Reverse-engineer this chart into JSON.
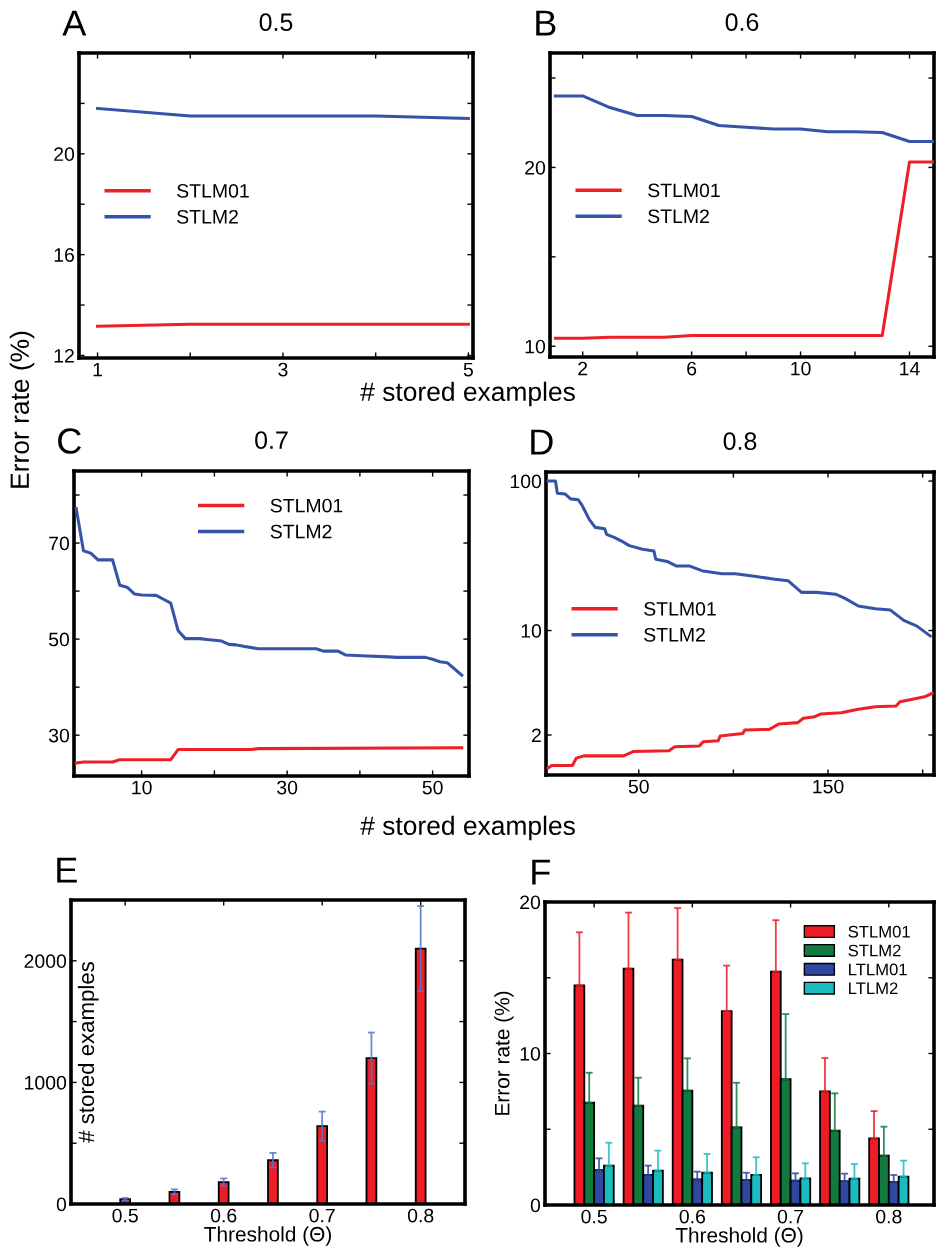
{
  "chart_data": [
    {
      "type": "line",
      "title": "0.5",
      "annotations": [
        "A"
      ],
      "xlabel": "# stored examples",
      "ylabel": "Error rate (%)",
      "xlim": [
        0.8,
        5.05
      ],
      "ylim": [
        11.9,
        24
      ],
      "xticks": [
        1,
        {
          "value": 2,
          "label": null
        },
        3,
        {
          "value": 4,
          "label": null
        },
        5
      ],
      "yticks": [
        12,
        {
          "value": 14,
          "label": null
        },
        16,
        {
          "value": 18,
          "label": null
        },
        20,
        {
          "value": 22,
          "label": null
        }
      ],
      "legend": "center left",
      "series": [
        {
          "name": "STLM01",
          "color": "#ee2027",
          "x": [
            1,
            2,
            3,
            4,
            5
          ],
          "values": [
            13.16,
            13.24,
            13.24,
            13.24,
            13.24
          ]
        },
        {
          "name": "STLM2",
          "color": "#3553a8",
          "x": [
            1,
            2,
            3,
            4,
            5
          ],
          "values": [
            21.8,
            21.5,
            21.5,
            21.5,
            21.4
          ]
        }
      ]
    },
    {
      "type": "line",
      "title": "0.6",
      "annotations": [
        "B"
      ],
      "xlim": [
        0.8,
        14.9
      ],
      "ylim": [
        9.4,
        26.4
      ],
      "xticks": [
        2,
        {
          "value": 4,
          "label": null
        },
        6,
        {
          "value": 8,
          "label": null
        },
        10,
        {
          "value": 12,
          "label": null
        },
        14
      ],
      "yticks": [
        10,
        {
          "value": 15,
          "label": null
        },
        20,
        {
          "value": 25,
          "label": null
        }
      ],
      "legend": "center left",
      "series": [
        {
          "name": "STLM01",
          "color": "#ee2027",
          "x": [
            1,
            2,
            3,
            4,
            5,
            6,
            7,
            8,
            9,
            10,
            11,
            12,
            13,
            14,
            14.9
          ],
          "values": [
            10.45,
            10.45,
            10.5,
            10.5,
            10.5,
            10.6,
            10.6,
            10.6,
            10.6,
            10.6,
            10.6,
            10.6,
            10.6,
            20.3,
            20.3
          ]
        },
        {
          "name": "STLM2",
          "color": "#3553a8",
          "x": [
            1,
            2,
            3,
            4,
            5,
            6,
            7,
            8,
            9,
            10,
            11,
            12,
            13,
            14,
            14.9
          ],
          "values": [
            24.0,
            24.0,
            23.35,
            22.9,
            22.9,
            22.85,
            22.35,
            22.25,
            22.15,
            22.15,
            22.0,
            22.0,
            21.95,
            21.45,
            21.45
          ]
        }
      ]
    },
    {
      "type": "line",
      "title": "0.7",
      "annotations": [
        "C"
      ],
      "xlabel": "# stored examples",
      "xlim": [
        0.7,
        55
      ],
      "ylim": [
        21.5,
        85
      ],
      "xticks": [
        10,
        {
          "value": 20,
          "label": null
        },
        30,
        {
          "value": 40,
          "label": null
        },
        50
      ],
      "yticks": [
        30,
        {
          "value": 40,
          "label": null
        },
        50,
        {
          "value": 60,
          "label": null
        },
        70,
        {
          "value": 80,
          "label": null
        }
      ],
      "legend": "top",
      "series": [
        {
          "name": "STLM01",
          "color": "#ee2027",
          "x": [
            1,
            2,
            6,
            7,
            14,
            15,
            25,
            26,
            54
          ],
          "values": [
            24.2,
            24.4,
            24.4,
            24.9,
            24.9,
            27.0,
            27.0,
            27.2,
            27.4
          ]
        },
        {
          "name": "STLM2",
          "color": "#3553a8",
          "x": [
            1,
            2,
            3,
            4,
            6,
            7,
            8,
            9,
            10,
            12,
            13,
            14,
            15,
            16,
            18,
            19,
            21,
            22,
            23,
            24,
            26,
            34,
            35,
            37,
            38,
            41,
            44,
            45,
            49,
            50,
            51,
            52,
            54
          ],
          "values": [
            77.2,
            68.4,
            67.9,
            66.5,
            66.5,
            61.2,
            60.8,
            59.4,
            59.2,
            59.1,
            58.3,
            57.5,
            51.8,
            50.1,
            50.1,
            49.9,
            49.6,
            48.9,
            48.8,
            48.5,
            48.0,
            48.0,
            47.5,
            47.5,
            46.7,
            46.5,
            46.3,
            46.2,
            46.2,
            45.8,
            45.3,
            45.1,
            42.5
          ]
        }
      ]
    },
    {
      "type": "line",
      "title": "0.8",
      "annotations": [
        "D"
      ],
      "log": true,
      "xlim": [
        1,
        206
      ],
      "ylim": [
        1.08,
        115
      ],
      "xticks": [
        50,
        {
          "value": 100,
          "label": null
        },
        150,
        {
          "value": 200,
          "label": null
        }
      ],
      "yticks": [
        2,
        10,
        100
      ],
      "legend": "center left",
      "series": [
        {
          "name": "STLM01",
          "color": "#ee2027",
          "x": [
            2,
            4,
            15,
            17,
            21,
            42,
            47,
            66,
            69,
            82,
            84,
            92,
            93,
            105,
            106,
            119,
            124,
            134,
            137,
            143,
            146,
            157,
            166,
            175,
            186,
            188,
            194,
            201,
            205
          ],
          "values": [
            1.2,
            1.25,
            1.25,
            1.4,
            1.45,
            1.45,
            1.55,
            1.57,
            1.67,
            1.69,
            1.8,
            1.83,
            1.97,
            2.05,
            2.16,
            2.18,
            2.37,
            2.42,
            2.59,
            2.65,
            2.76,
            2.82,
            2.97,
            3.09,
            3.13,
            3.34,
            3.46,
            3.6,
            3.8
          ]
        },
        {
          "name": "STLM2",
          "color": "#3553a8",
          "x": [
            2,
            6,
            7,
            11,
            14,
            18,
            20,
            24,
            27,
            32,
            33,
            37,
            42,
            45,
            52,
            58,
            59,
            65,
            70,
            77,
            84,
            94,
            101,
            112,
            122,
            129,
            136,
            144,
            154,
            159,
            166,
            175,
            183,
            190,
            197,
            204
          ],
          "values": [
            100,
            100,
            83,
            82,
            76,
            75,
            69,
            55,
            49,
            48,
            44,
            42,
            39,
            37,
            35,
            34,
            30,
            29,
            27,
            27,
            25,
            24,
            24,
            23,
            22,
            21.5,
            18,
            18,
            17.5,
            16.4,
            14.6,
            14,
            13.7,
            11.7,
            10.7,
            9.2
          ]
        }
      ]
    },
    {
      "type": "bar",
      "annotations": [
        "E"
      ],
      "xlabel": "Threshold (Θ)",
      "ylabel": "# stored examples",
      "xlim": [
        0.445,
        0.845
      ],
      "ylim": [
        0,
        2500
      ],
      "xticks": [
        0.5,
        0.6,
        0.7,
        0.8
      ],
      "yticks": [
        0,
        {
          "value": 500,
          "label": null
        },
        1000,
        {
          "value": 1500,
          "label": null
        },
        2000
      ],
      "color": "#ee1c24",
      "x": [
        0.5,
        0.55,
        0.6,
        0.65,
        0.7,
        0.75,
        0.8
      ],
      "values": [
        40,
        100,
        180,
        360,
        640,
        1200,
        2100
      ],
      "errors": [
        10,
        20,
        30,
        60,
        120,
        210,
        350
      ]
    },
    {
      "type": "bar",
      "annotations": [
        "F"
      ],
      "xlabel": "Threshold (Θ)",
      "ylabel": "Error rate (%)",
      "xlim": [
        0.45,
        0.846
      ],
      "ylim": [
        0,
        20
      ],
      "xticks": [
        0.5,
        0.6,
        0.7,
        0.8
      ],
      "yticks": [
        0,
        {
          "value": 5,
          "label": null
        },
        10,
        {
          "value": 15,
          "label": null
        },
        20
      ],
      "legend": "top right",
      "x": [
        0.5,
        0.55,
        0.6,
        0.65,
        0.7,
        0.75,
        0.8
      ],
      "series": [
        {
          "name": "STLM01",
          "color": "#ee1c24",
          "values": [
            14.5,
            15.6,
            16.2,
            12.8,
            15.4,
            7.5,
            4.4
          ],
          "errors": [
            [
              14.5,
              18.0
            ],
            [
              15.6,
              19.3
            ],
            [
              16.2,
              19.6
            ],
            [
              12.8,
              15.8
            ],
            [
              15.4,
              18.8
            ],
            [
              7.5,
              9.7
            ],
            [
              4.4,
              6.2
            ]
          ]
        },
        {
          "name": "STLM2",
          "color": "#117a3e",
          "values": [
            6.75,
            6.55,
            7.55,
            5.13,
            8.3,
            4.9,
            3.26
          ],
          "errors": [
            [
              6.75,
              8.73
            ],
            [
              6.55,
              8.4
            ],
            [
              7.55,
              9.68
            ],
            [
              5.13,
              8.07
            ],
            [
              8.3,
              12.6
            ],
            [
              4.9,
              7.37
            ],
            [
              3.26,
              5.17
            ]
          ]
        },
        {
          "name": "LTLM01",
          "color": "#2e47a0",
          "values": [
            2.31,
            1.98,
            1.69,
            1.65,
            1.61,
            1.58,
            1.52
          ],
          "errors": [
            [
              2.31,
              3.08
            ],
            [
              1.98,
              2.6
            ],
            [
              1.69,
              2.2
            ],
            [
              1.65,
              2.13
            ],
            [
              1.61,
              2.09
            ],
            [
              1.58,
              2.07
            ],
            [
              1.52,
              1.98
            ]
          ]
        },
        {
          "name": "LTLM2",
          "color": "#1bbcc0",
          "values": [
            2.6,
            2.27,
            2.13,
            1.98,
            1.76,
            1.74,
            1.87
          ],
          "errors": [
            [
              2.6,
              4.11
            ],
            [
              2.27,
              3.59
            ],
            [
              2.13,
              3.37
            ],
            [
              1.98,
              3.15
            ],
            [
              1.76,
              2.75
            ],
            [
              1.74,
              2.7
            ],
            [
              1.87,
              2.93
            ]
          ]
        }
      ]
    }
  ]
}
